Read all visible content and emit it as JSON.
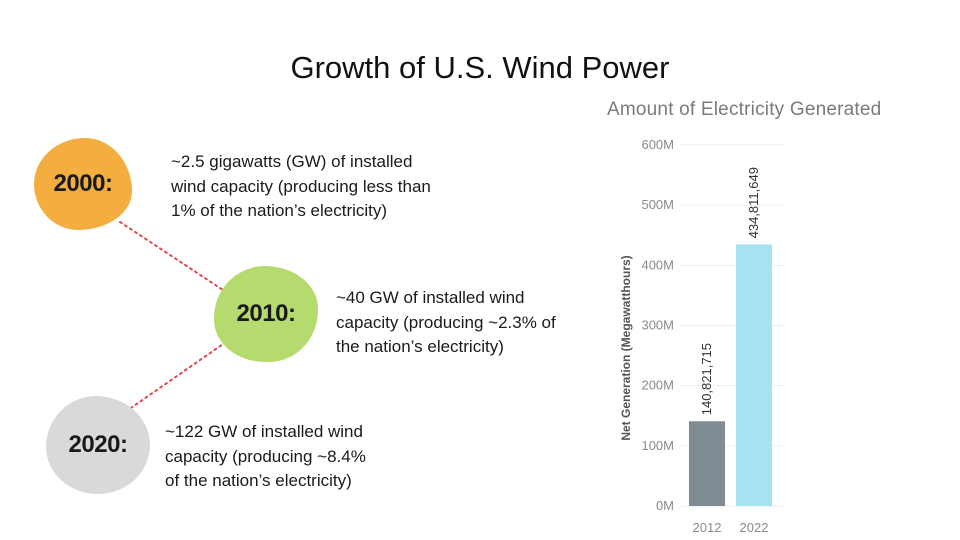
{
  "title": "Growth of U.S. Wind Power",
  "milestones": [
    {
      "year": "2000:",
      "color": "#f4ae3f",
      "text": "~2.5 gigawatts (GW) of installed\nwind capacity (producing less than\n1% of the nation’s electricity)"
    },
    {
      "year": "2010:",
      "color": "#b5db6e",
      "text": "~40 GW of installed wind\ncapacity (producing ~2.3% of\nthe nation’s electricity)"
    },
    {
      "year": "2020:",
      "color": "#d9d9d9",
      "text": "~122 GW of installed wind\ncapacity (producing ~8.4%\nof the nation’s electricity)"
    }
  ],
  "connector_color": "#e0484d",
  "chart_data": {
    "type": "bar",
    "title": "Amount of Electricity Generated",
    "xlabel": "",
    "ylabel": "Net Generation (Megawatthours)",
    "categories": [
      "2012",
      "2022"
    ],
    "values": [
      140821715,
      434811649
    ],
    "value_labels": [
      "140,821,715",
      "434,811,649"
    ],
    "colors": [
      "#7f8c93",
      "#a6e3f2"
    ],
    "ylim": [
      0,
      600000000
    ],
    "yticks": [
      0,
      100000000,
      200000000,
      300000000,
      400000000,
      500000000,
      600000000
    ],
    "ytick_labels": [
      "0M",
      "100M",
      "200M",
      "300M",
      "400M",
      "500M",
      "600M"
    ],
    "grid": true
  }
}
